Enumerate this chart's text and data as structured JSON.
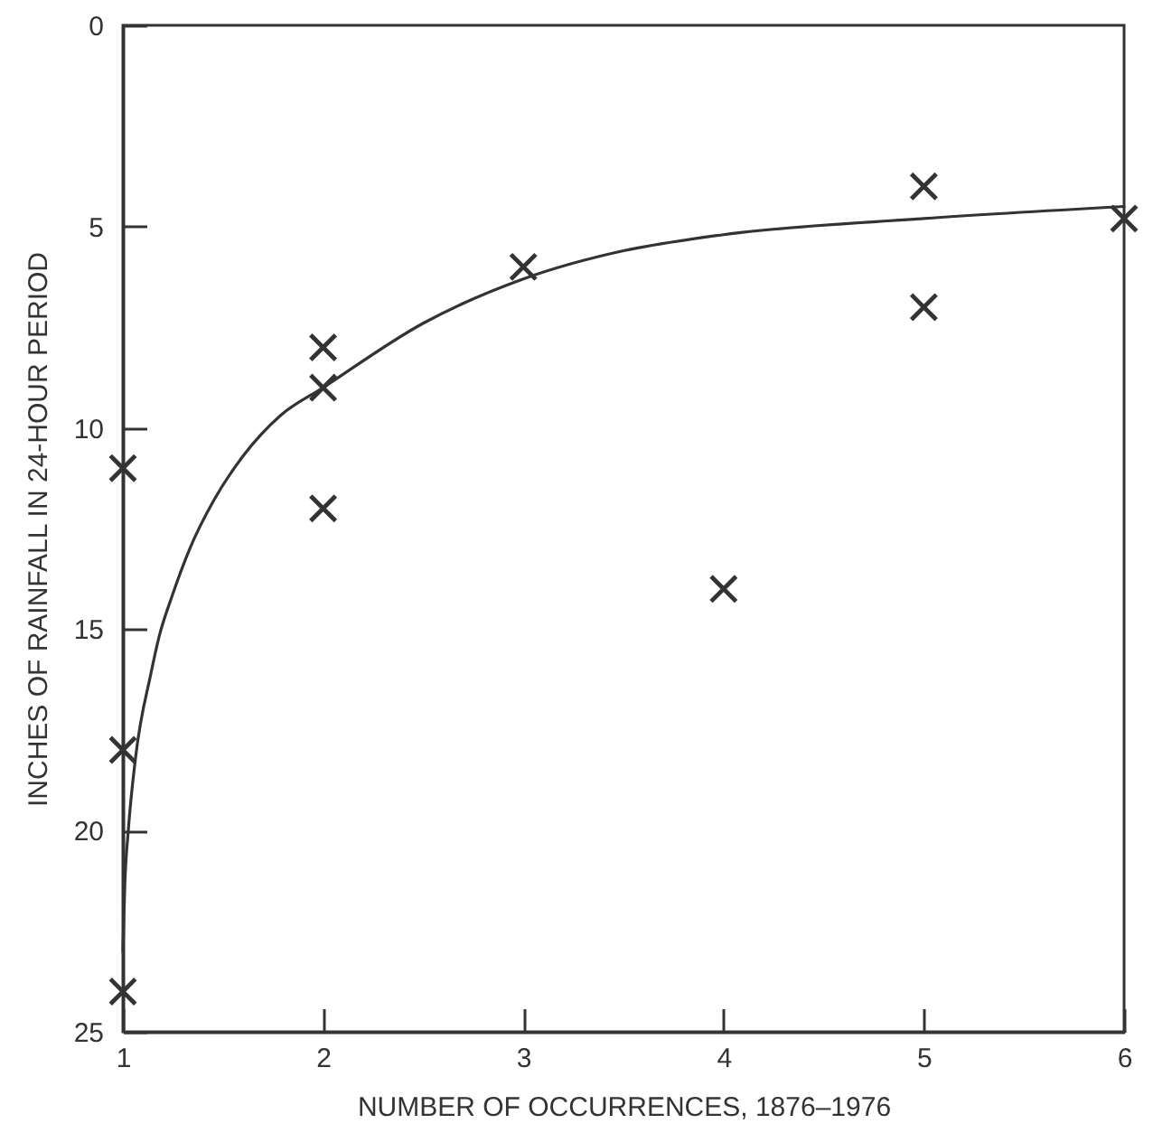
{
  "chart_data": {
    "type": "scatter",
    "xlabel": "NUMBER OF OCCURRENCES, 1876–1976",
    "ylabel": "INCHES OF RAINFALL IN 24-HOUR PERIOD",
    "xlim": [
      1,
      6
    ],
    "xticks": [
      1,
      2,
      3,
      4,
      5,
      6
    ],
    "ylim": [
      25,
      0
    ],
    "yticks": [
      0,
      5,
      10,
      15,
      20,
      25
    ],
    "series": [
      {
        "color": "#333333",
        "marker": "cross",
        "x": [
          1,
          1,
          1,
          2,
          2,
          2,
          3,
          4,
          5,
          5,
          6
        ],
        "values": [
          11,
          18,
          24,
          8,
          9,
          12,
          6,
          14,
          4,
          7,
          4.8
        ]
      },
      {
        "type": "line",
        "color": "#333333",
        "line_style": "solid",
        "x": [
          1,
          1.01,
          1.027,
          1.063,
          1.14,
          1.18,
          1.244,
          1.334,
          1.454,
          1.6,
          1.785,
          2,
          2.5,
          3,
          3.5,
          4,
          5,
          6
        ],
        "values": [
          23,
          21.3,
          20,
          18.2,
          16.1,
          15.2,
          14.2,
          13,
          11.8,
          10.7,
          9.7,
          9,
          7.4,
          6.3,
          5.6,
          5.2,
          4.8,
          4.5
        ]
      }
    ]
  }
}
